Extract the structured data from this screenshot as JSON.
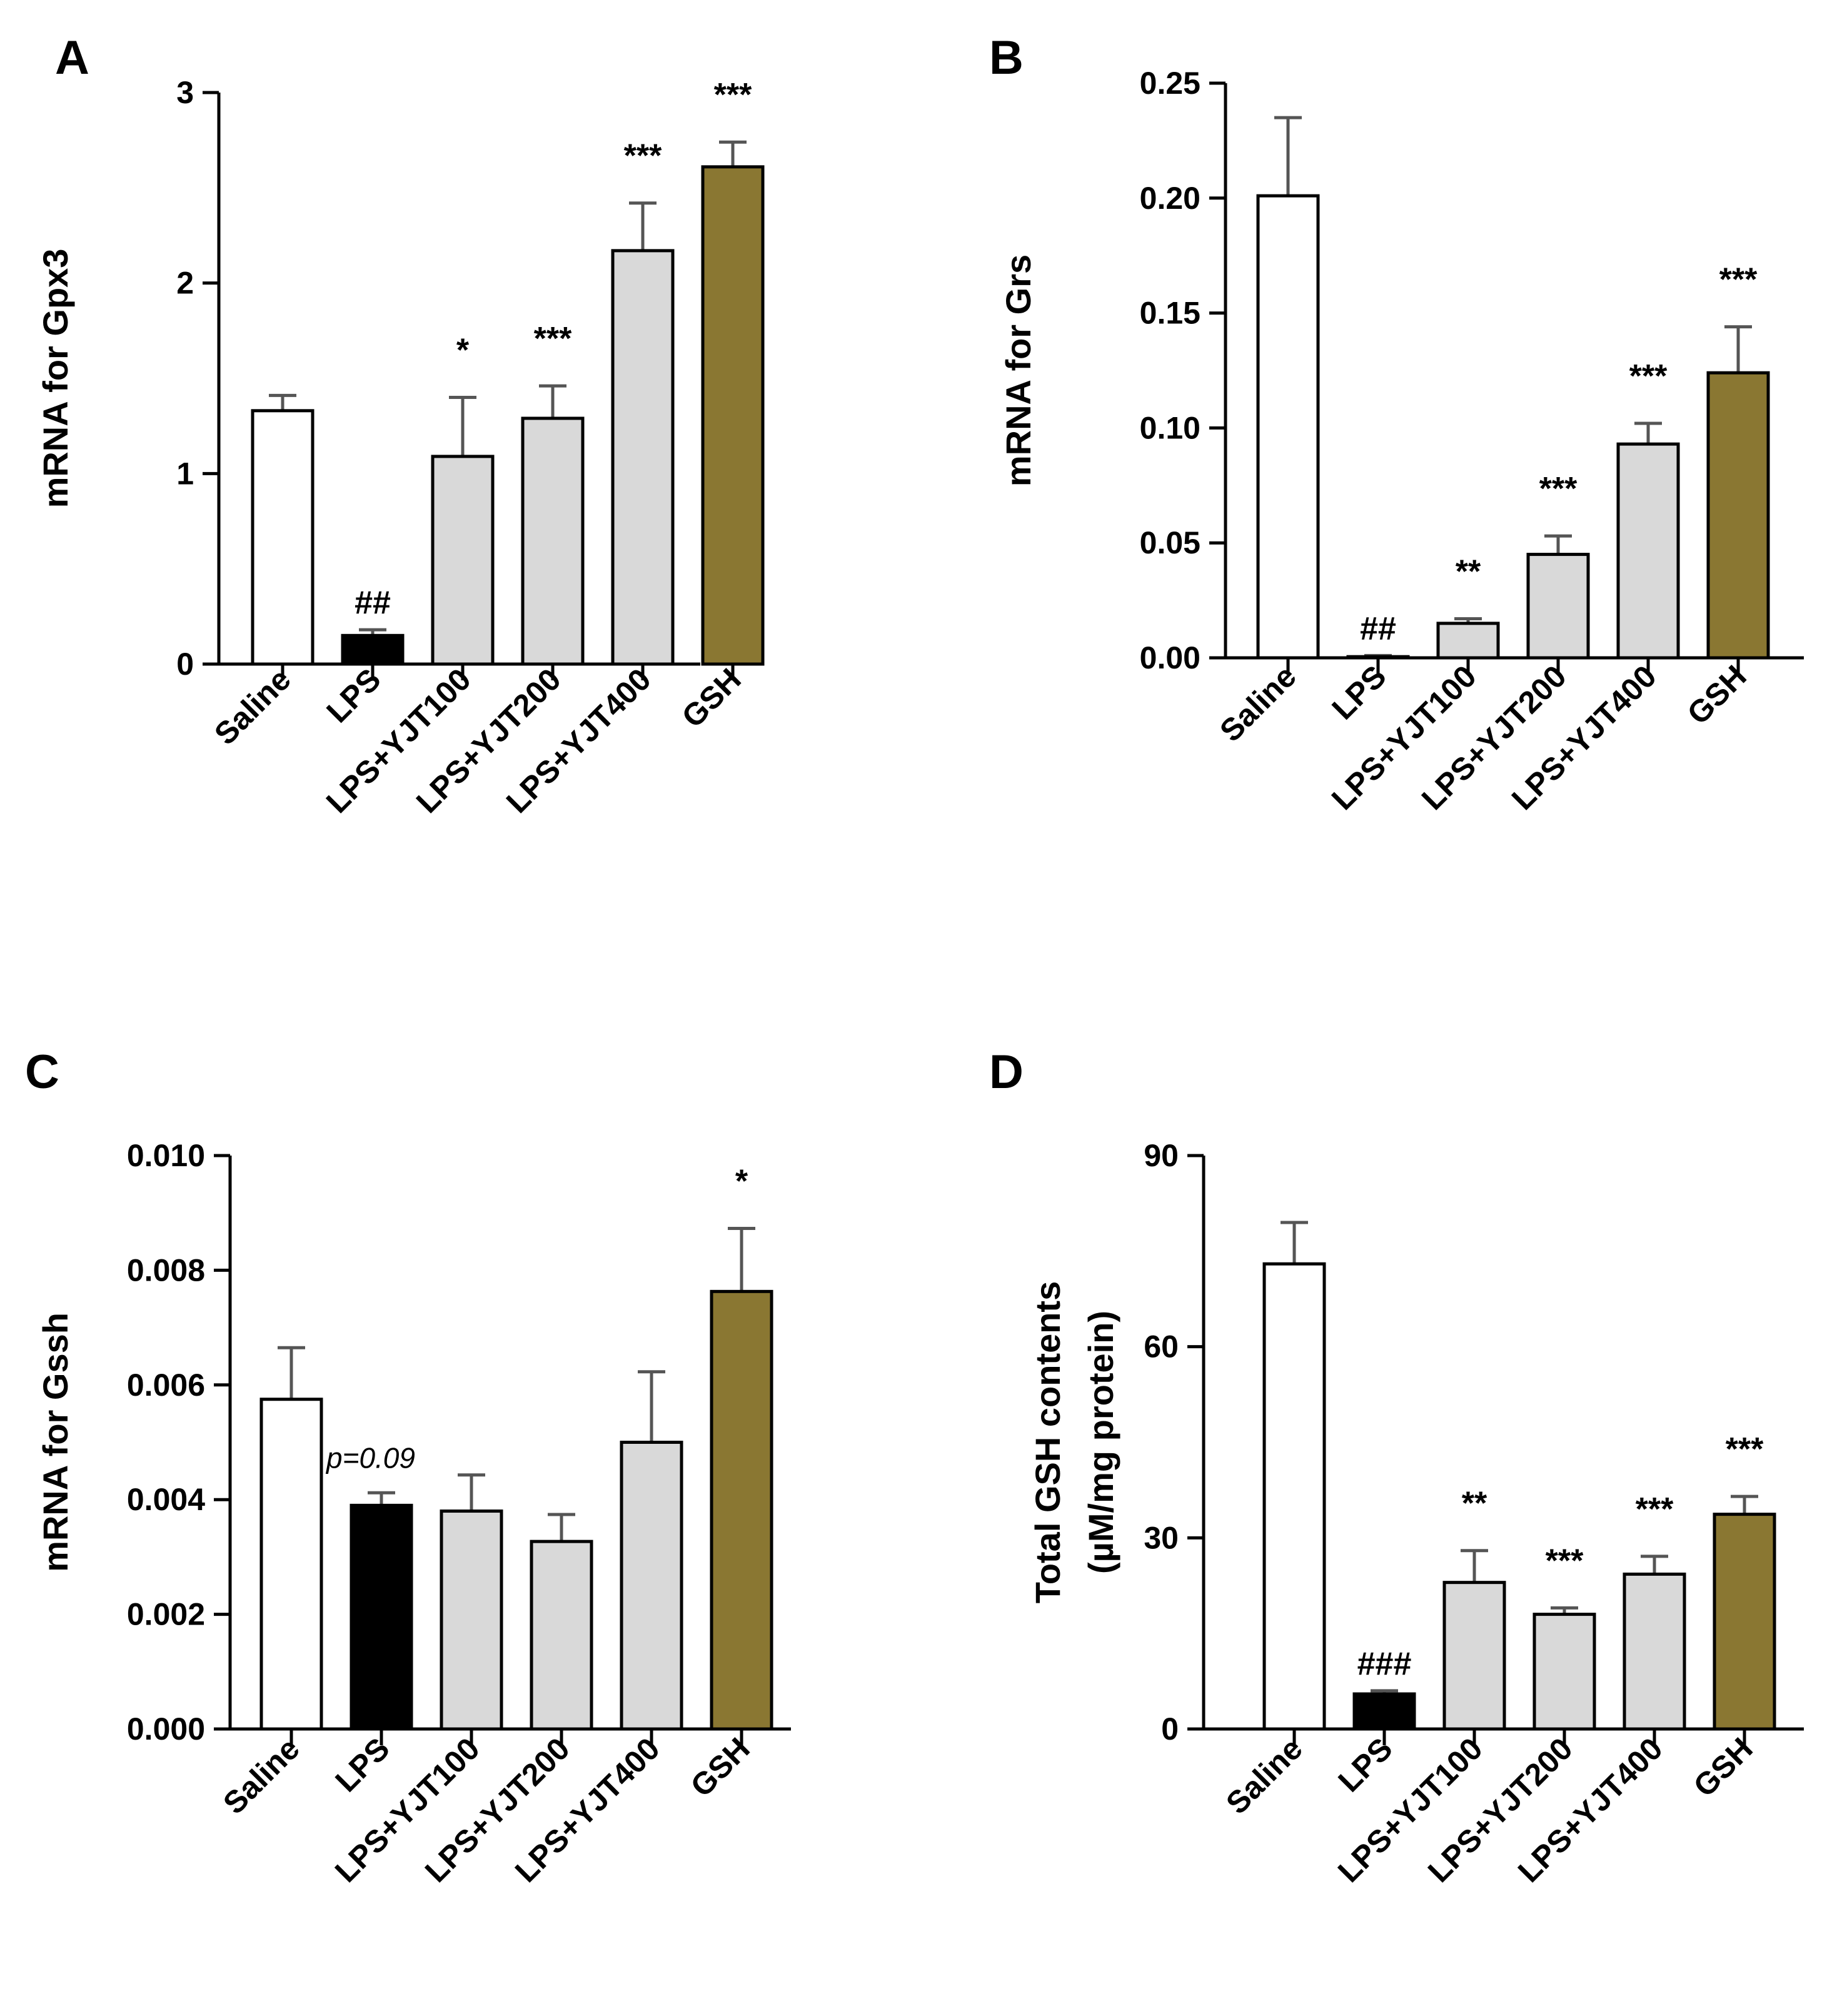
{
  "colors": {
    "saline": "#ffffff",
    "lps": "#000000",
    "yjt": "#d9d9d9",
    "gsh": "#8a7732",
    "outline": "#000000",
    "errorbar": "#555555"
  },
  "chart_data": [
    {
      "panel": "A",
      "type": "bar",
      "categories": [
        "Saline",
        "LPS",
        "LPS+YJT100",
        "LPS+YJT200",
        "LPS+YJT400",
        "GSH"
      ],
      "values": [
        1.33,
        0.15,
        1.09,
        1.29,
        2.17,
        2.61
      ],
      "errors": [
        0.08,
        0.03,
        0.31,
        0.17,
        0.25,
        0.13
      ],
      "annotations": [
        "",
        "##",
        "*",
        "***",
        "***",
        "***"
      ],
      "ylabel": "mRNA for Gpx3",
      "ylim": [
        0,
        3
      ],
      "yticks": [
        "0",
        "1",
        "2",
        "3"
      ],
      "note": null
    },
    {
      "panel": "B",
      "type": "bar",
      "categories": [
        "Saline",
        "LPS",
        "LPS+YJT100",
        "LPS+YJT200",
        "LPS+YJT400",
        "GSH"
      ],
      "values": [
        0.201,
        0.0005,
        0.015,
        0.045,
        0.093,
        0.124
      ],
      "errors": [
        0.034,
        0.0005,
        0.002,
        0.008,
        0.009,
        0.02
      ],
      "annotations": [
        "",
        "##",
        "**",
        "***",
        "***",
        "***"
      ],
      "ylabel": "mRNA for Grs",
      "ylim": [
        0,
        0.25
      ],
      "yticks": [
        "0.00",
        "0.05",
        "0.10",
        "0.15",
        "0.20",
        "0.25"
      ],
      "note": null
    },
    {
      "panel": "C",
      "type": "bar",
      "categories": [
        "Saline",
        "LPS",
        "LPS+YJT100",
        "LPS+YJT200",
        "LPS+YJT400",
        "GSH"
      ],
      "values": [
        0.00575,
        0.0039,
        0.0038,
        0.00327,
        0.005,
        0.00763
      ],
      "errors": [
        0.0009,
        0.00022,
        0.00063,
        0.00047,
        0.00123,
        0.0011
      ],
      "annotations": [
        "",
        "",
        "",
        "",
        "",
        "*"
      ],
      "ylabel": "mRNA for Gssh",
      "ylim": [
        0,
        0.01
      ],
      "yticks": [
        "0.000",
        "0.002",
        "0.004",
        "0.006",
        "0.008",
        "0.010"
      ],
      "note": "p=0.09"
    },
    {
      "panel": "D",
      "type": "bar",
      "categories": [
        "Saline",
        "LPS",
        "LPS+YJT100",
        "LPS+YJT200",
        "LPS+YJT400",
        "GSH"
      ],
      "values": [
        73,
        5.5,
        23,
        18,
        24.3,
        33.7
      ],
      "errors": [
        6.5,
        0.5,
        5,
        1,
        2.8,
        2.8
      ],
      "annotations": [
        "",
        "###",
        "**",
        "***",
        "***",
        "***"
      ],
      "ylabel": "Total GSH contents",
      "ylabel2": "(µM/mg protein)",
      "ylim": [
        0,
        90
      ],
      "yticks": [
        "0",
        "30",
        "60",
        "90"
      ],
      "note": null
    }
  ]
}
